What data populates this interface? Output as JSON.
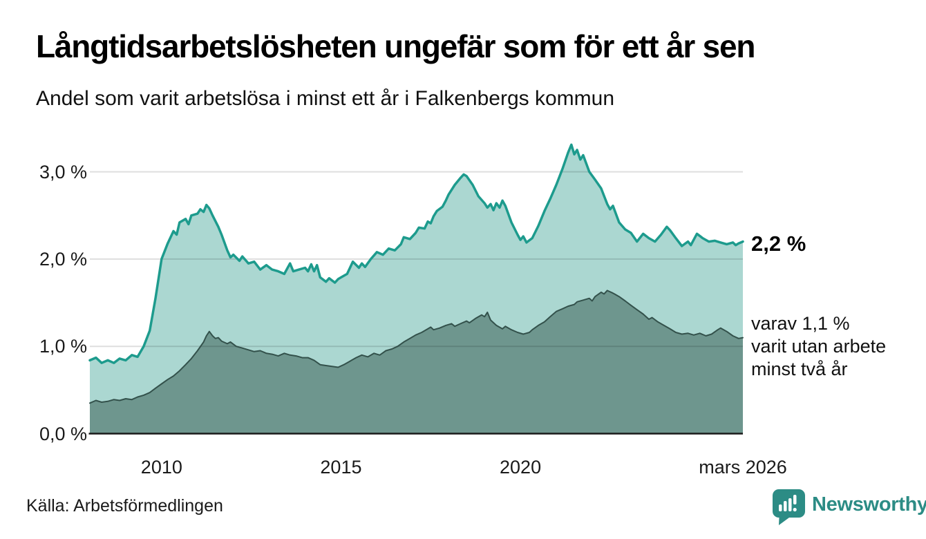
{
  "header": {
    "title": "Långtidsarbetslösheten ungefär som för ett år sen",
    "subtitle": "Andel som varit arbetslösa i minst ett år i Falkenbergs kommun"
  },
  "annotations": {
    "latest_main": "2,2 %",
    "secondary_lines": [
      "varav 1,1 %",
      "varit utan arbete",
      "minst två år"
    ]
  },
  "footer": {
    "source": "Källa: Arbetsförmedlingen",
    "logo_text": "Newsworthy"
  },
  "colors": {
    "line_min_one_year": "#1d9b8d",
    "fill_min_one_year": "#abd7d1",
    "line_min_two_years": "#33514b",
    "fill_min_two_years": "#6e968e",
    "gridline": "rgba(0,0,0,0.13)",
    "axis": "#1a1a1a",
    "logo_teal": "#2c8c85"
  },
  "chart_data": {
    "type": "area",
    "title": "Andel som varit arbetslösa i minst ett år i Falkenbergs kommun",
    "unit": "%",
    "grid": "horizontal",
    "xlim": [
      2008,
      2026.2
    ],
    "ylim": [
      0,
      3.5
    ],
    "y_ticks": [
      {
        "value": 3,
        "label": "3,0 %"
      },
      {
        "value": 2,
        "label": "2,0 %"
      },
      {
        "value": 1,
        "label": "1,0 %"
      },
      {
        "value": 0,
        "label": "0,0 %"
      }
    ],
    "x_ticks": [
      {
        "value": 2010,
        "label": "2010"
      },
      {
        "value": 2015,
        "label": "2015"
      },
      {
        "value": 2020,
        "label": "2020"
      },
      {
        "value": 2026.2,
        "label": "mars 2026"
      }
    ],
    "series": [
      {
        "name": "Andel arbetslösa minst ett år",
        "latest_label": "2,2 %",
        "points": [
          [
            2008.0,
            0.84
          ],
          [
            2008.17,
            0.87
          ],
          [
            2008.33,
            0.81
          ],
          [
            2008.5,
            0.84
          ],
          [
            2008.67,
            0.81
          ],
          [
            2008.83,
            0.86
          ],
          [
            2009.0,
            0.84
          ],
          [
            2009.17,
            0.9
          ],
          [
            2009.33,
            0.88
          ],
          [
            2009.5,
            1.0
          ],
          [
            2009.67,
            1.18
          ],
          [
            2009.83,
            1.55
          ],
          [
            2010.0,
            2.0
          ],
          [
            2010.17,
            2.18
          ],
          [
            2010.33,
            2.32
          ],
          [
            2010.42,
            2.28
          ],
          [
            2010.5,
            2.42
          ],
          [
            2010.67,
            2.46
          ],
          [
            2010.75,
            2.4
          ],
          [
            2010.83,
            2.5
          ],
          [
            2011.0,
            2.52
          ],
          [
            2011.08,
            2.57
          ],
          [
            2011.17,
            2.54
          ],
          [
            2011.25,
            2.62
          ],
          [
            2011.33,
            2.58
          ],
          [
            2011.42,
            2.5
          ],
          [
            2011.58,
            2.37
          ],
          [
            2011.67,
            2.28
          ],
          [
            2011.83,
            2.1
          ],
          [
            2011.92,
            2.02
          ],
          [
            2012.0,
            2.05
          ],
          [
            2012.17,
            1.98
          ],
          [
            2012.25,
            2.03
          ],
          [
            2012.42,
            1.95
          ],
          [
            2012.58,
            1.97
          ],
          [
            2012.75,
            1.88
          ],
          [
            2012.92,
            1.93
          ],
          [
            2013.08,
            1.88
          ],
          [
            2013.25,
            1.86
          ],
          [
            2013.42,
            1.83
          ],
          [
            2013.58,
            1.95
          ],
          [
            2013.67,
            1.86
          ],
          [
            2013.83,
            1.88
          ],
          [
            2014.0,
            1.9
          ],
          [
            2014.08,
            1.86
          ],
          [
            2014.17,
            1.94
          ],
          [
            2014.25,
            1.86
          ],
          [
            2014.33,
            1.93
          ],
          [
            2014.42,
            1.79
          ],
          [
            2014.58,
            1.74
          ],
          [
            2014.67,
            1.78
          ],
          [
            2014.83,
            1.73
          ],
          [
            2014.92,
            1.77
          ],
          [
            2015.0,
            1.79
          ],
          [
            2015.17,
            1.83
          ],
          [
            2015.33,
            1.97
          ],
          [
            2015.5,
            1.9
          ],
          [
            2015.58,
            1.95
          ],
          [
            2015.67,
            1.91
          ],
          [
            2015.83,
            2.0
          ],
          [
            2016.0,
            2.08
          ],
          [
            2016.17,
            2.05
          ],
          [
            2016.33,
            2.12
          ],
          [
            2016.5,
            2.1
          ],
          [
            2016.67,
            2.17
          ],
          [
            2016.75,
            2.25
          ],
          [
            2016.92,
            2.23
          ],
          [
            2017.08,
            2.3
          ],
          [
            2017.17,
            2.36
          ],
          [
            2017.33,
            2.35
          ],
          [
            2017.42,
            2.43
          ],
          [
            2017.5,
            2.41
          ],
          [
            2017.58,
            2.49
          ],
          [
            2017.67,
            2.55
          ],
          [
            2017.83,
            2.6
          ],
          [
            2017.92,
            2.67
          ],
          [
            2018.0,
            2.74
          ],
          [
            2018.17,
            2.85
          ],
          [
            2018.33,
            2.93
          ],
          [
            2018.42,
            2.97
          ],
          [
            2018.5,
            2.95
          ],
          [
            2018.67,
            2.85
          ],
          [
            2018.83,
            2.72
          ],
          [
            2019.0,
            2.64
          ],
          [
            2019.08,
            2.59
          ],
          [
            2019.17,
            2.63
          ],
          [
            2019.25,
            2.56
          ],
          [
            2019.33,
            2.64
          ],
          [
            2019.42,
            2.59
          ],
          [
            2019.5,
            2.67
          ],
          [
            2019.58,
            2.61
          ],
          [
            2019.75,
            2.42
          ],
          [
            2019.92,
            2.28
          ],
          [
            2020.0,
            2.22
          ],
          [
            2020.08,
            2.26
          ],
          [
            2020.17,
            2.19
          ],
          [
            2020.33,
            2.24
          ],
          [
            2020.5,
            2.38
          ],
          [
            2020.67,
            2.55
          ],
          [
            2020.83,
            2.69
          ],
          [
            2021.0,
            2.85
          ],
          [
            2021.17,
            3.03
          ],
          [
            2021.33,
            3.22
          ],
          [
            2021.42,
            3.31
          ],
          [
            2021.5,
            3.2
          ],
          [
            2021.58,
            3.25
          ],
          [
            2021.67,
            3.14
          ],
          [
            2021.75,
            3.19
          ],
          [
            2021.92,
            3.0
          ],
          [
            2022.08,
            2.91
          ],
          [
            2022.25,
            2.81
          ],
          [
            2022.42,
            2.63
          ],
          [
            2022.5,
            2.57
          ],
          [
            2022.58,
            2.61
          ],
          [
            2022.75,
            2.42
          ],
          [
            2022.92,
            2.34
          ],
          [
            2023.08,
            2.3
          ],
          [
            2023.25,
            2.2
          ],
          [
            2023.42,
            2.29
          ],
          [
            2023.58,
            2.24
          ],
          [
            2023.75,
            2.2
          ],
          [
            2023.92,
            2.28
          ],
          [
            2024.08,
            2.37
          ],
          [
            2024.17,
            2.33
          ],
          [
            2024.33,
            2.24
          ],
          [
            2024.5,
            2.15
          ],
          [
            2024.67,
            2.2
          ],
          [
            2024.75,
            2.16
          ],
          [
            2024.92,
            2.29
          ],
          [
            2025.08,
            2.24
          ],
          [
            2025.25,
            2.2
          ],
          [
            2025.42,
            2.21
          ],
          [
            2025.58,
            2.19
          ],
          [
            2025.75,
            2.17
          ],
          [
            2025.92,
            2.19
          ],
          [
            2026.0,
            2.16
          ],
          [
            2026.08,
            2.18
          ],
          [
            2026.2,
            2.2
          ]
        ]
      },
      {
        "name": "Andel arbetslösa minst två år",
        "latest_label": "1,1 %",
        "points": [
          [
            2008.0,
            0.35
          ],
          [
            2008.17,
            0.38
          ],
          [
            2008.33,
            0.36
          ],
          [
            2008.5,
            0.37
          ],
          [
            2008.67,
            0.39
          ],
          [
            2008.83,
            0.38
          ],
          [
            2009.0,
            0.4
          ],
          [
            2009.17,
            0.39
          ],
          [
            2009.33,
            0.42
          ],
          [
            2009.5,
            0.44
          ],
          [
            2009.67,
            0.47
          ],
          [
            2009.83,
            0.52
          ],
          [
            2010.0,
            0.57
          ],
          [
            2010.17,
            0.62
          ],
          [
            2010.33,
            0.66
          ],
          [
            2010.5,
            0.72
          ],
          [
            2010.67,
            0.79
          ],
          [
            2010.83,
            0.86
          ],
          [
            2011.0,
            0.95
          ],
          [
            2011.17,
            1.05
          ],
          [
            2011.25,
            1.12
          ],
          [
            2011.33,
            1.17
          ],
          [
            2011.42,
            1.12
          ],
          [
            2011.5,
            1.09
          ],
          [
            2011.58,
            1.1
          ],
          [
            2011.67,
            1.06
          ],
          [
            2011.83,
            1.03
          ],
          [
            2011.92,
            1.05
          ],
          [
            2012.08,
            1.0
          ],
          [
            2012.25,
            0.98
          ],
          [
            2012.42,
            0.96
          ],
          [
            2012.58,
            0.94
          ],
          [
            2012.75,
            0.95
          ],
          [
            2012.92,
            0.92
          ],
          [
            2013.08,
            0.91
          ],
          [
            2013.25,
            0.89
          ],
          [
            2013.42,
            0.92
          ],
          [
            2013.58,
            0.9
          ],
          [
            2013.75,
            0.89
          ],
          [
            2013.92,
            0.87
          ],
          [
            2014.08,
            0.87
          ],
          [
            2014.25,
            0.84
          ],
          [
            2014.42,
            0.79
          ],
          [
            2014.58,
            0.78
          ],
          [
            2014.75,
            0.77
          ],
          [
            2014.92,
            0.76
          ],
          [
            2015.08,
            0.79
          ],
          [
            2015.25,
            0.83
          ],
          [
            2015.42,
            0.87
          ],
          [
            2015.58,
            0.9
          ],
          [
            2015.75,
            0.88
          ],
          [
            2015.92,
            0.92
          ],
          [
            2016.08,
            0.9
          ],
          [
            2016.25,
            0.95
          ],
          [
            2016.42,
            0.97
          ],
          [
            2016.58,
            1.0
          ],
          [
            2016.75,
            1.05
          ],
          [
            2016.92,
            1.09
          ],
          [
            2017.08,
            1.13
          ],
          [
            2017.25,
            1.16
          ],
          [
            2017.42,
            1.2
          ],
          [
            2017.5,
            1.22
          ],
          [
            2017.58,
            1.19
          ],
          [
            2017.75,
            1.21
          ],
          [
            2017.92,
            1.24
          ],
          [
            2018.08,
            1.26
          ],
          [
            2018.17,
            1.23
          ],
          [
            2018.33,
            1.26
          ],
          [
            2018.5,
            1.29
          ],
          [
            2018.58,
            1.27
          ],
          [
            2018.75,
            1.32
          ],
          [
            2018.92,
            1.36
          ],
          [
            2019.0,
            1.34
          ],
          [
            2019.08,
            1.39
          ],
          [
            2019.17,
            1.3
          ],
          [
            2019.33,
            1.24
          ],
          [
            2019.5,
            1.2
          ],
          [
            2019.58,
            1.23
          ],
          [
            2019.75,
            1.19
          ],
          [
            2019.92,
            1.16
          ],
          [
            2020.08,
            1.14
          ],
          [
            2020.25,
            1.16
          ],
          [
            2020.33,
            1.19
          ],
          [
            2020.5,
            1.24
          ],
          [
            2020.67,
            1.28
          ],
          [
            2020.83,
            1.34
          ],
          [
            2021.0,
            1.4
          ],
          [
            2021.17,
            1.43
          ],
          [
            2021.33,
            1.46
          ],
          [
            2021.5,
            1.48
          ],
          [
            2021.58,
            1.51
          ],
          [
            2021.75,
            1.53
          ],
          [
            2021.92,
            1.55
          ],
          [
            2022.0,
            1.52
          ],
          [
            2022.08,
            1.57
          ],
          [
            2022.25,
            1.62
          ],
          [
            2022.33,
            1.6
          ],
          [
            2022.42,
            1.64
          ],
          [
            2022.58,
            1.61
          ],
          [
            2022.75,
            1.57
          ],
          [
            2022.92,
            1.52
          ],
          [
            2023.08,
            1.47
          ],
          [
            2023.25,
            1.42
          ],
          [
            2023.42,
            1.37
          ],
          [
            2023.58,
            1.31
          ],
          [
            2023.67,
            1.33
          ],
          [
            2023.83,
            1.28
          ],
          [
            2024.0,
            1.24
          ],
          [
            2024.17,
            1.2
          ],
          [
            2024.33,
            1.16
          ],
          [
            2024.5,
            1.14
          ],
          [
            2024.67,
            1.15
          ],
          [
            2024.83,
            1.13
          ],
          [
            2025.0,
            1.15
          ],
          [
            2025.17,
            1.12
          ],
          [
            2025.33,
            1.14
          ],
          [
            2025.5,
            1.19
          ],
          [
            2025.58,
            1.21
          ],
          [
            2025.75,
            1.17
          ],
          [
            2025.92,
            1.12
          ],
          [
            2026.08,
            1.09
          ],
          [
            2026.2,
            1.1
          ]
        ]
      }
    ]
  }
}
